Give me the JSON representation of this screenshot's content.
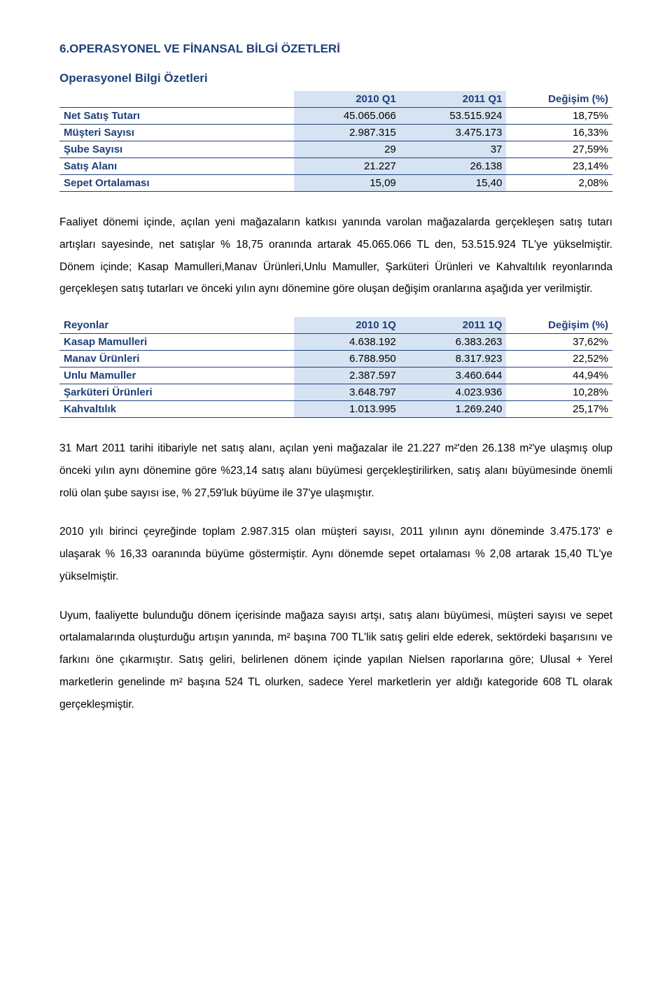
{
  "headings": {
    "main": "6.OPERASYONEL VE FİNANSAL BİLGİ ÖZETLERİ",
    "sub": "Operasyonel Bilgi Özetleri"
  },
  "table1": {
    "headers": [
      "",
      "2010 Q1",
      "2011 Q1",
      "Değişim (%)"
    ],
    "rows": [
      [
        "Net Satış Tutarı",
        "45.065.066",
        "53.515.924",
        "18,75%"
      ],
      [
        "Müşteri Sayısı",
        "2.987.315",
        "3.475.173",
        "16,33%"
      ],
      [
        "Şube Sayısı",
        "29",
        "37",
        "27,59%"
      ],
      [
        "Satış Alanı",
        "21.227",
        "26.138",
        "23,14%"
      ],
      [
        "Sepet Ortalaması",
        "15,09",
        "15,40",
        "2,08%"
      ]
    ]
  },
  "para1": "Faaliyet dönemi içinde, açılan yeni mağazaların katkısı yanında varolan mağazalarda gerçekleşen satış tutarı artışları sayesinde, net satışlar % 18,75 oranında artarak 45.065.066 TL den, 53.515.924 TL'ye yükselmiştir. Dönem içinde; Kasap Mamulleri,Manav Ürünleri,Unlu Mamuller, Şarküteri Ürünleri ve Kahvaltılık reyonlarında gerçekleşen satış tutarları ve önceki yılın aynı dönemine göre oluşan değişim oranlarına aşağıda yer verilmiştir.",
  "table2": {
    "headers": [
      "Reyonlar",
      "2010 1Q",
      "2011 1Q",
      "Değişim (%)"
    ],
    "rows": [
      [
        "Kasap Mamulleri",
        "4.638.192",
        "6.383.263",
        "37,62%"
      ],
      [
        "Manav Ürünleri",
        "6.788.950",
        "8.317.923",
        "22,52%"
      ],
      [
        "Unlu Mamuller",
        "2.387.597",
        "3.460.644",
        "44,94%"
      ],
      [
        "Şarküteri Ürünleri",
        "3.648.797",
        "4.023.936",
        "10,28%"
      ],
      [
        "Kahvaltılık",
        "1.013.995",
        "1.269.240",
        "25,17%"
      ]
    ]
  },
  "para2": "31 Mart 2011 tarihi itibariyle net satış alanı, açılan yeni mağazalar ile 21.227 m²'den 26.138 m²'ye ulaşmış olup önceki yılın aynı dönemine göre %23,14 satış alanı büyümesi gerçekleştirilirken, satış alanı büyümesinde önemli rolü olan şube sayısı ise, % 27,59'luk büyüme ile 37'ye ulaşmıştır.",
  "para3": "2010 yılı birinci çeyreğinde toplam 2.987.315 olan müşteri sayısı, 2011 yılının aynı döneminde 3.475.173' e ulaşarak % 16,33 oaranında büyüme göstermiştir. Aynı dönemde sepet ortalaması % 2,08 artarak 15,40 TL'ye yükselmiştir.",
  "para4": "Uyum, faaliyette bulunduğu dönem içerisinde mağaza sayısı artşı, satış alanı büyümesi, müşteri sayısı ve sepet ortalamalarında oluşturduğu artışın yanında, m² başına 700 TL'lik satış geliri elde ederek, sektördeki başarısını ve farkını öne çıkarmıştır. Satış geliri, belirlenen dönem içinde yapılan Nielsen raporlarına göre; Ulusal + Yerel marketlerin genelinde m² başına 524 TL olurken, sadece Yerel marketlerin yer aldığı kategoride 608 TL olarak gerçekleşmiştir."
}
